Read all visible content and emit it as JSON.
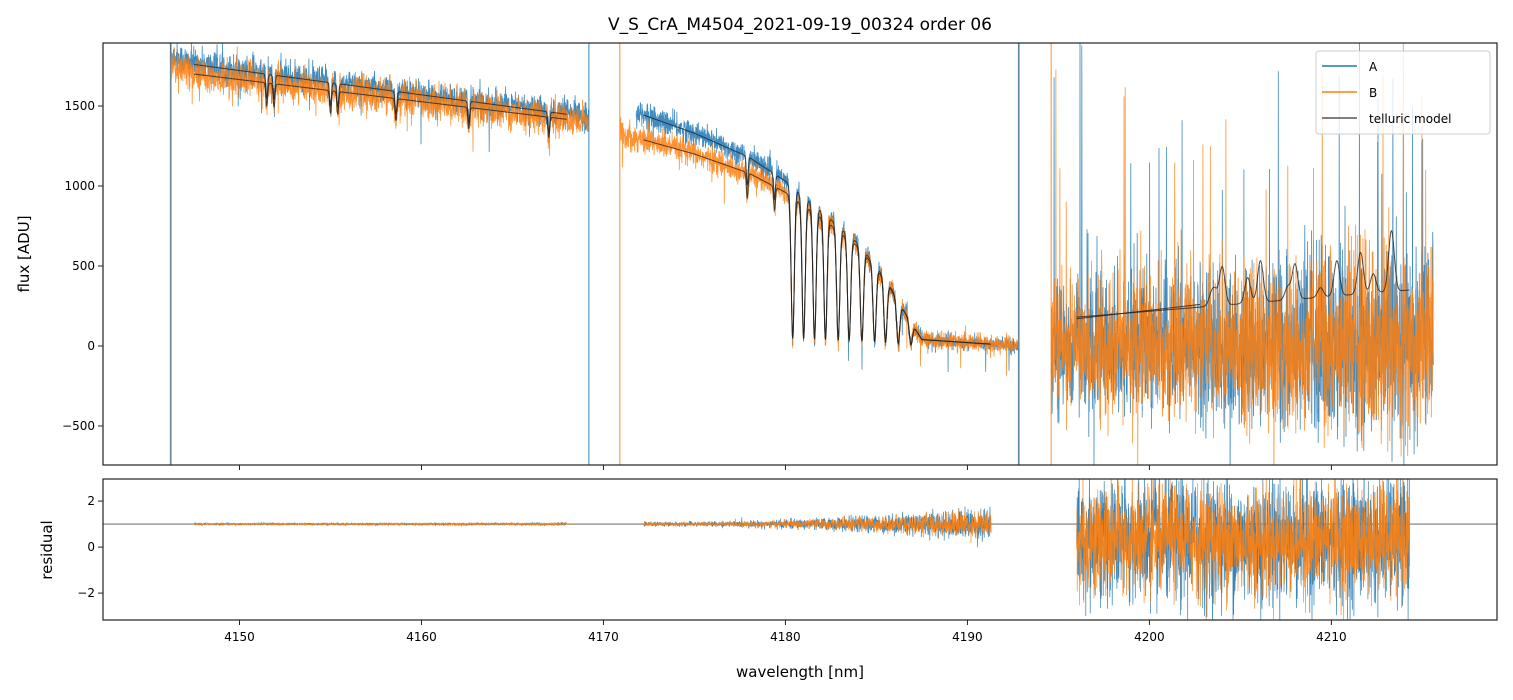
{
  "chart_data": {
    "type": "line",
    "title": "V_S_CrA_M4504_2021-09-19_00324  order 06",
    "xlabel": "wavelength [nm]",
    "panels": [
      {
        "name": "flux",
        "ylabel": "flux [ADU]",
        "xlim": [
          4142.5,
          4219.1
        ],
        "ylim": [
          -744,
          1894
        ],
        "xticks": [
          4150,
          4160,
          4170,
          4180,
          4190,
          4200,
          4210
        ],
        "yticks": [
          -500,
          0,
          500,
          1000,
          1500
        ],
        "ytick_labels": [
          "−500",
          "0",
          "500",
          "1000",
          "1500"
        ],
        "legend": {
          "placement": "top-right",
          "entries": [
            "A",
            "B",
            "telluric model"
          ]
        }
      },
      {
        "name": "residual",
        "ylabel": "residual",
        "xlim": [
          4142.5,
          4219.1
        ],
        "ylim": [
          -3.17,
          2.96
        ],
        "yticks": [
          -2,
          0,
          2
        ],
        "ytick_labels": [
          "−2",
          "0",
          "2"
        ],
        "reference_line": 1
      }
    ],
    "colors": {
      "A": "#1f77b4",
      "B": "#ff7f0e",
      "model": "#222222"
    },
    "series": [
      {
        "name": "A",
        "scale": 1.0,
        "segments": [
          {
            "x": [
              4146.2,
              4169.2
            ],
            "continuum": [
              [
                4146.2,
                1820
              ],
              [
                4147.5,
                1760
              ],
              [
                4169.2,
                1430
              ]
            ],
            "noise": 35
          },
          {
            "x": [
              4171.8,
              4192.8
            ],
            "continuum": [
              [
                4171.8,
                1460
              ],
              [
                4175,
                1330
              ],
              [
                4178,
                1180
              ],
              [
                4180,
                1030
              ],
              [
                4182,
                840
              ],
              [
                4184,
                640
              ],
              [
                4185.5,
                420
              ],
              [
                4186.5,
                220
              ],
              [
                4187.5,
                40
              ],
              [
                4192.8,
                0
              ]
            ],
            "noise": 30
          },
          {
            "x": [
              4194.6,
              4215.6
            ],
            "continuum": [
              [
                4194.6,
                0
              ],
              [
                4215.6,
                0
              ]
            ],
            "noise": 230
          }
        ]
      },
      {
        "name": "B",
        "scale": 0.94,
        "segments": [
          {
            "x": [
              4146.2,
              4169.2
            ],
            "continuum": [
              [
                4146.2,
                1760
              ],
              [
                4147.5,
                1700
              ],
              [
                4169.2,
                1400
              ]
            ],
            "noise": 40
          },
          {
            "x": [
              4170.9,
              4192.8
            ],
            "continuum": [
              [
                4170.9,
                1330
              ],
              [
                4175,
                1200
              ],
              [
                4178,
                1080
              ],
              [
                4180,
                960
              ],
              [
                4182,
                800
              ],
              [
                4184,
                620
              ],
              [
                4185.5,
                410
              ],
              [
                4186.5,
                220
              ],
              [
                4187.5,
                40
              ],
              [
                4192.8,
                0
              ]
            ],
            "noise": 35
          },
          {
            "x": [
              4194.6,
              4215.6
            ],
            "continuum": [
              [
                4194.6,
                0
              ],
              [
                4215.6,
                0
              ]
            ],
            "noise": 230
          }
        ]
      }
    ],
    "absorption_lines": [
      4151.5,
      4151.9,
      4155.0,
      4155.4,
      4158.6,
      4162.6,
      4167.0,
      4177.9,
      4179.4,
      4180.4,
      4181.0,
      4181.6,
      4182.2,
      4182.9,
      4183.5,
      4184.2,
      4184.9,
      4185.5,
      4186.2,
      4186.9
    ],
    "spikes": [
      {
        "series": "A",
        "x": 4146.2
      },
      {
        "series": "B",
        "x": 4146.25
      },
      {
        "series": "A",
        "x": 4169.2
      },
      {
        "series": "B",
        "x": 4170.9
      },
      {
        "series": "A",
        "x": 4192.8
      },
      {
        "series": "B",
        "x": 4192.85
      },
      {
        "series": "B",
        "x": 4194.6
      }
    ],
    "model_segments": [
      {
        "x": [
          4147.5,
          4168.0
        ],
        "follows": "A"
      },
      {
        "x": [
          4147.5,
          4168.0
        ],
        "follows": "B"
      },
      {
        "x": [
          4172.2,
          4191.3
        ],
        "follows": "A"
      },
      {
        "x": [
          4172.2,
          4191.3
        ],
        "follows": "B"
      },
      {
        "x": [
          4196.0,
          4214.3
        ],
        "linear": [
          180,
          350
        ],
        "bumps": [
          [
            4203.4,
            60
          ],
          [
            4203.6,
            80
          ],
          [
            4204.0,
            240
          ],
          [
            4205.4,
            160
          ],
          [
            4206.1,
            260
          ],
          [
            4207.6,
            80
          ],
          [
            4208.0,
            220
          ],
          [
            4209.4,
            60
          ],
          [
            4210.3,
            220
          ],
          [
            4211.6,
            260
          ],
          [
            4212.3,
            120
          ],
          [
            4213.3,
            380
          ]
        ]
      },
      {
        "x": [
          4196.0,
          4202.8
        ],
        "linear": [
          170,
          260
        ]
      }
    ],
    "residual_segments": [
      {
        "x": [
          4147.5,
          4168.0
        ],
        "noise": [
          0.02,
          0.03
        ]
      },
      {
        "x": [
          4172.2,
          4191.3
        ],
        "noise": [
          0.04,
          0.35
        ]
      },
      {
        "x": [
          4196.0,
          4214.3
        ],
        "noise": [
          1.3,
          1.3
        ]
      }
    ]
  }
}
